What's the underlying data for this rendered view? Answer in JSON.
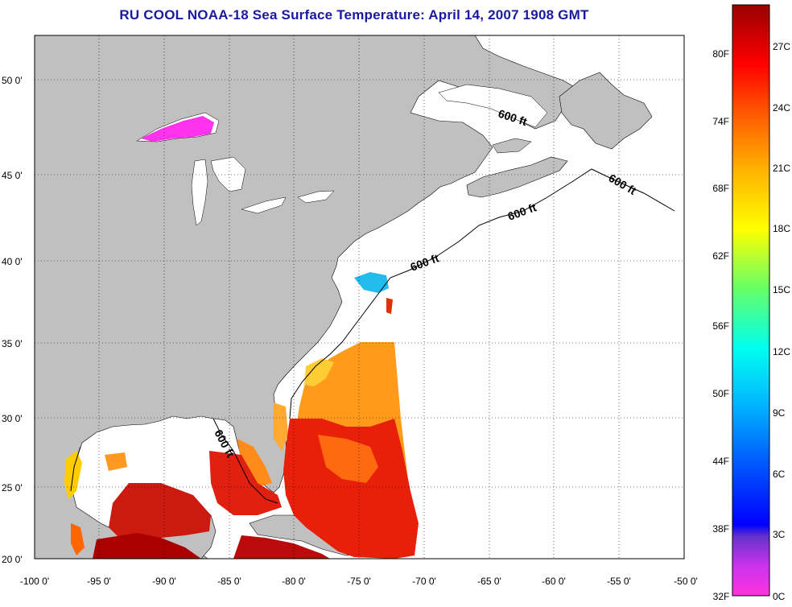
{
  "title": "RU COOL  NOAA-18  Sea Surface Temperature:  April 14, 2007 1908 GMT",
  "lat_ticks": [
    "20 0'",
    "25 0'",
    "30 0'",
    "35 0'",
    "40 0'",
    "45 0'",
    "50 0'"
  ],
  "lon_ticks": [
    "-100 0'",
    "-95 0'",
    "-90 0'",
    "-85 0'",
    "-80 0'",
    "-75 0'",
    "-70 0'",
    "-65 0'",
    "-60 0'",
    "-55 0'",
    "-50 0'"
  ],
  "isobath_labels": [
    "600 ft",
    "600 ft",
    "600 ft",
    "600 ft",
    "600 ft"
  ],
  "colorbar": {
    "fahrenheit_labels": [
      "80F",
      "74F",
      "68F",
      "62F",
      "56F",
      "50F",
      "44F",
      "38F",
      "32F"
    ],
    "celsius_labels": [
      "27C",
      "24C",
      "21C",
      "18C",
      "15C",
      "12C",
      "9C",
      "6C",
      "3C",
      "0C"
    ],
    "range_celsius": [
      0,
      29
    ],
    "stops": [
      "#ff33dd",
      "#9933cc",
      "#0000ff",
      "#0080ff",
      "#00ffff",
      "#33ff99",
      "#ccff33",
      "#ffff00",
      "#ffb300",
      "#ff6600",
      "#ff0000",
      "#aa0000"
    ]
  },
  "colors": {
    "land": "#c0c0c0",
    "ocean": "#ffffff",
    "title": "#1a1aa0"
  }
}
